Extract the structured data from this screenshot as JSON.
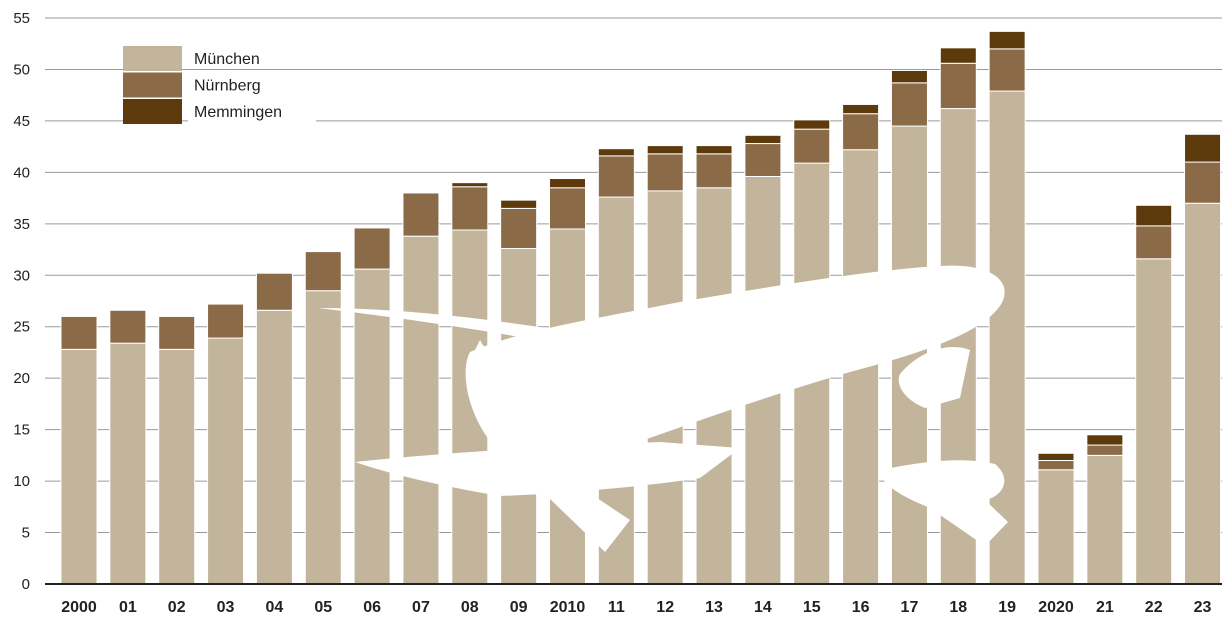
{
  "chart_data": {
    "type": "bar",
    "stacked": true,
    "title": "",
    "xlabel": "",
    "ylabel": "",
    "ylim": [
      0,
      55
    ],
    "yticks": [
      0,
      5,
      10,
      15,
      20,
      25,
      30,
      35,
      40,
      45,
      50,
      55
    ],
    "grid": "horizontal",
    "legend_position": "top-left",
    "categories": [
      "2000",
      "01",
      "02",
      "03",
      "04",
      "05",
      "06",
      "07",
      "08",
      "09",
      "2010",
      "11",
      "12",
      "13",
      "14",
      "15",
      "16",
      "17",
      "18",
      "19",
      "2020",
      "21",
      "22",
      "23"
    ],
    "series": [
      {
        "name": "München",
        "color": "#c2b59b",
        "values": [
          22.8,
          23.4,
          22.8,
          23.9,
          26.6,
          28.5,
          30.6,
          33.8,
          34.4,
          32.6,
          34.5,
          37.6,
          38.2,
          38.5,
          39.6,
          40.9,
          42.2,
          44.5,
          46.2,
          47.9,
          11.1,
          12.5,
          31.6,
          37.0
        ]
      },
      {
        "name": "Nürnberg",
        "color": "#8b6a48",
        "values": [
          3.2,
          3.2,
          3.2,
          3.3,
          3.6,
          3.8,
          4.0,
          4.2,
          4.2,
          3.9,
          4.0,
          4.0,
          3.6,
          3.3,
          3.2,
          3.3,
          3.5,
          4.2,
          4.4,
          4.1,
          0.9,
          1.0,
          3.2,
          4.0
        ]
      },
      {
        "name": "Memmingen",
        "color": "#5c3a0c",
        "values": [
          0,
          0,
          0,
          0,
          0,
          0,
          0,
          0,
          0.4,
          0.8,
          0.9,
          0.7,
          0.8,
          0.8,
          0.8,
          0.9,
          0.9,
          1.2,
          1.5,
          1.7,
          0.7,
          1.0,
          2.0,
          2.7
        ]
      }
    ]
  },
  "colors": {
    "grid": "#9a9a9a",
    "axis": "#222222",
    "background": "#ffffff",
    "airplane": "#ffffff"
  },
  "decoration": {
    "airplane": "airplane-silhouette"
  }
}
